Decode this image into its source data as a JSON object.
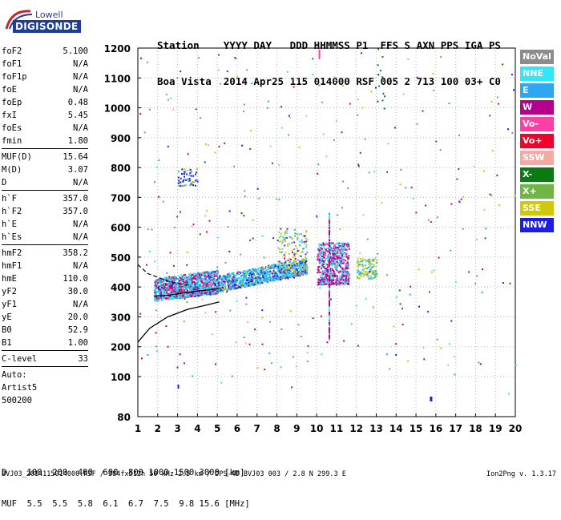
{
  "logo": {
    "line1": "Lowell",
    "line2": "DIGISONDE"
  },
  "header": {
    "line1": "Station    YYYY DAY   DDD HHMMSS P1  FFS S AXN PPS IGA PS",
    "line2": "Boa Vista  2014 Apr25 115 014000 RSF 005 2 713 100 03+ C0"
  },
  "params": [
    {
      "label": "foF2",
      "value": "5.100"
    },
    {
      "label": "foF1",
      "value": "N/A"
    },
    {
      "label": "foF1p",
      "value": "N/A"
    },
    {
      "label": "foE",
      "value": "N/A"
    },
    {
      "label": "foEp",
      "value": "0.48"
    },
    {
      "label": "fxI",
      "value": "5.45"
    },
    {
      "label": "foEs",
      "value": "N/A"
    },
    {
      "label": "fmin",
      "value": "1.80"
    },
    {
      "label": "MUF(D)",
      "value": "15.64"
    },
    {
      "label": "M(D)",
      "value": "3.07"
    },
    {
      "label": "D",
      "value": "N/A"
    },
    {
      "label": "h`F",
      "value": "357.0"
    },
    {
      "label": "h`F2",
      "value": "357.0"
    },
    {
      "label": "h`E",
      "value": "N/A"
    },
    {
      "label": "h`Es",
      "value": "N/A"
    },
    {
      "label": "hmF2",
      "value": "358.2"
    },
    {
      "label": "hmF1",
      "value": "N/A"
    },
    {
      "label": "hmE",
      "value": "110.0"
    },
    {
      "label": "yF2",
      "value": "30.0"
    },
    {
      "label": "yF1",
      "value": "N/A"
    },
    {
      "label": "yE",
      "value": "20.0"
    },
    {
      "label": "B0",
      "value": "52.9"
    },
    {
      "label": "B1",
      "value": "1.00"
    },
    {
      "label": "C-level",
      "value": "33"
    }
  ],
  "auto": {
    "line1": "Auto:",
    "line2": "Artist5",
    "line3": "500200"
  },
  "legend": [
    {
      "label": "NoVal",
      "color": "#8c8c8c"
    },
    {
      "label": "NNE",
      "color": "#33e6f5"
    },
    {
      "label": "E",
      "color": "#2fa6f0"
    },
    {
      "label": "W",
      "color": "#b4008c"
    },
    {
      "label": "Vo-",
      "color": "#ff3fa6"
    },
    {
      "label": "Vo+",
      "color": "#f0002a"
    },
    {
      "label": "SSW",
      "color": "#f4aaa0"
    },
    {
      "label": "X-",
      "color": "#0c7a12"
    },
    {
      "label": "X+",
      "color": "#6fb642"
    },
    {
      "label": "SSE",
      "color": "#d2c80a"
    },
    {
      "label": "NNW",
      "color": "#1c1ce6"
    }
  ],
  "chart_data": {
    "type": "scatter",
    "x_ticks": [
      "1",
      "2",
      "3",
      "4",
      "5",
      "6",
      "7",
      "8",
      "9",
      "10",
      "11",
      "12",
      "13",
      "14",
      "15",
      "16",
      "17",
      "18",
      "19",
      "20"
    ],
    "y_ticks": [
      "80",
      "100",
      "200",
      "300",
      "400",
      "500",
      "600",
      "700",
      "800",
      "900",
      "1000",
      "1100",
      "1200"
    ],
    "x_unit": "MHz",
    "y_unit": "km",
    "xlim": [
      1,
      20
    ],
    "ylim": [
      80,
      1200
    ],
    "grid": true,
    "echo_clusters": [
      {
        "f_range": [
          1.8,
          5.0
        ],
        "h_range": [
          350,
          470
        ],
        "mode": "E/NNE/W"
      },
      {
        "f_range": [
          5.0,
          9.5
        ],
        "h_range": [
          380,
          510
        ],
        "mode": "E/NNE"
      },
      {
        "f_range": [
          8.0,
          9.5
        ],
        "h_range": [
          460,
          600
        ],
        "mode": "SSE"
      },
      {
        "f_range": [
          10.0,
          11.6
        ],
        "h_range": [
          410,
          550
        ],
        "mode": "W/NNE"
      },
      {
        "f_range": [
          12.0,
          13.0
        ],
        "h_range": [
          430,
          500
        ],
        "mode": "SSE/NNE"
      },
      {
        "f_range": [
          3.0,
          4.0
        ],
        "h_range": [
          740,
          800
        ],
        "mode": "NNW/E"
      }
    ],
    "trace_profile": [
      {
        "f": 1.0,
        "h": 215
      },
      {
        "f": 1.6,
        "h": 262
      },
      {
        "f": 2.5,
        "h": 300
      },
      {
        "f": 3.5,
        "h": 325
      },
      {
        "f": 4.5,
        "h": 340
      },
      {
        "f": 5.1,
        "h": 350
      }
    ],
    "trace_virtual": [
      {
        "f": 1.8,
        "h": 370
      },
      {
        "f": 2.5,
        "h": 372
      },
      {
        "f": 3.5,
        "h": 382
      },
      {
        "f": 4.5,
        "h": 390
      },
      {
        "f": 5.1,
        "h": 395
      }
    ],
    "trace_dashed": [
      {
        "f": 1.0,
        "h": 475
      },
      {
        "f": 1.5,
        "h": 445
      },
      {
        "f": 2.5,
        "h": 420
      },
      {
        "f": 3.5,
        "h": 405
      }
    ]
  },
  "dtable": {
    "d_row": "D    100  200  400  600  800 1000 1500 3000 [km]",
    "muf_row": "MUF  5.5  5.5  5.8  6.1  6.7  7.5  9.8 15.6 [MHz]"
  },
  "footer": {
    "file": "BVJ03_2014115014000.RSF / 384fx512h 50 kHz 2.5 km / DPS-4D BVJ03 003 / 2.8 N 299.3 E",
    "version": "Ion2Png v. 1.3.17"
  }
}
